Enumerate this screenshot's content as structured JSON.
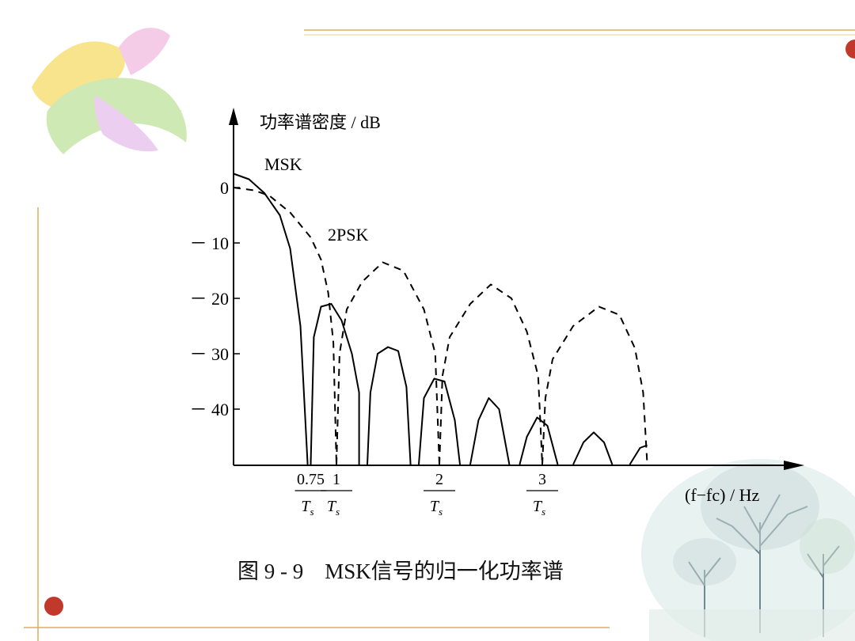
{
  "colors": {
    "curve": "#000000",
    "frame_line": "#b8860b",
    "dot": "#c0392b",
    "tree": "#6f8a8e"
  },
  "caption": "图 9 - 9　MSK信号的归一化功率谱",
  "chart_data": {
    "type": "line",
    "ylabel": "功率谱密度 / dB",
    "xlabel": "(f−fc) / Hz",
    "yticks": [
      {
        "value": 0,
        "label": "0"
      },
      {
        "value": -10,
        "label": "－ 10"
      },
      {
        "value": -20,
        "label": "－ 20"
      },
      {
        "value": -30,
        "label": "－ 30"
      },
      {
        "value": -40,
        "label": "－ 40"
      }
    ],
    "xticks": [
      {
        "value": 0.75,
        "num": "0.75",
        "den": "Ts"
      },
      {
        "value": 1,
        "num": "1",
        "den": "Ts"
      },
      {
        "value": 2,
        "num": "2",
        "den": "Ts"
      },
      {
        "value": 3,
        "num": "3",
        "den": "Ts"
      }
    ],
    "series": [
      {
        "name": "MSK",
        "style": "solid",
        "label_pos": "top-left",
        "segments": [
          [
            [
              0,
              2.5
            ],
            [
              0.15,
              1.5
            ],
            [
              0.3,
              -1
            ],
            [
              0.45,
              -5
            ],
            [
              0.55,
              -11
            ],
            [
              0.65,
              -25
            ],
            [
              0.72,
              -50
            ]
          ],
          [
            [
              0.75,
              -50
            ],
            [
              0.78,
              -27
            ],
            [
              0.85,
              -21.5
            ],
            [
              0.95,
              -21
            ],
            [
              1.05,
              -24
            ],
            [
              1.15,
              -30
            ],
            [
              1.22,
              -37
            ],
            [
              1.22,
              -50
            ]
          ],
          [
            [
              1.3,
              -50
            ],
            [
              1.33,
              -37
            ],
            [
              1.4,
              -30
            ],
            [
              1.5,
              -28.8
            ],
            [
              1.6,
              -29.5
            ],
            [
              1.68,
              -36
            ],
            [
              1.72,
              -50
            ]
          ],
          [
            [
              1.8,
              -50
            ],
            [
              1.85,
              -38
            ],
            [
              1.95,
              -34.5
            ],
            [
              2.05,
              -35
            ],
            [
              2.15,
              -42
            ],
            [
              2.2,
              -50
            ]
          ],
          [
            [
              2.3,
              -50
            ],
            [
              2.38,
              -42
            ],
            [
              2.48,
              -38
            ],
            [
              2.58,
              -40
            ],
            [
              2.68,
              -50
            ]
          ],
          [
            [
              2.78,
              -50
            ],
            [
              2.85,
              -45
            ],
            [
              2.95,
              -41.5
            ],
            [
              3.05,
              -43
            ],
            [
              3.15,
              -50
            ]
          ],
          [
            [
              3.3,
              -50
            ],
            [
              3.4,
              -46
            ],
            [
              3.5,
              -44.2
            ],
            [
              3.6,
              -46
            ],
            [
              3.68,
              -50
            ]
          ],
          [
            [
              3.85,
              -50
            ],
            [
              3.95,
              -47
            ],
            [
              4.02,
              -46.5
            ]
          ]
        ]
      },
      {
        "name": "2PSK",
        "style": "dashed",
        "label_pos": "middle",
        "segments": [
          [
            [
              0,
              0
            ],
            [
              0.2,
              -0.5
            ],
            [
              0.35,
              -1.5
            ],
            [
              0.55,
              -4.5
            ],
            [
              0.75,
              -9
            ],
            [
              0.85,
              -13
            ],
            [
              0.92,
              -19
            ],
            [
              0.97,
              -28
            ],
            [
              1.0,
              -50
            ]
          ],
          [
            [
              1.0,
              -50
            ],
            [
              1.03,
              -30
            ],
            [
              1.1,
              -22
            ],
            [
              1.25,
              -17
            ],
            [
              1.45,
              -13.5
            ],
            [
              1.65,
              -15
            ],
            [
              1.85,
              -22
            ],
            [
              1.96,
              -30
            ],
            [
              2.0,
              -50
            ]
          ],
          [
            [
              2.0,
              -50
            ],
            [
              2.03,
              -34
            ],
            [
              2.1,
              -27
            ],
            [
              2.3,
              -21
            ],
            [
              2.5,
              -17.5
            ],
            [
              2.7,
              -20
            ],
            [
              2.85,
              -26
            ],
            [
              2.96,
              -34
            ],
            [
              3.0,
              -50
            ]
          ],
          [
            [
              3.0,
              -50
            ],
            [
              3.03,
              -38
            ],
            [
              3.1,
              -31
            ],
            [
              3.3,
              -25
            ],
            [
              3.55,
              -21.5
            ],
            [
              3.75,
              -23
            ],
            [
              3.9,
              -29
            ],
            [
              3.98,
              -37
            ],
            [
              4.02,
              -50
            ]
          ]
        ]
      }
    ],
    "xlim": [
      0,
      5.5
    ],
    "ylim": [
      -50,
      13
    ],
    "grid": false
  }
}
